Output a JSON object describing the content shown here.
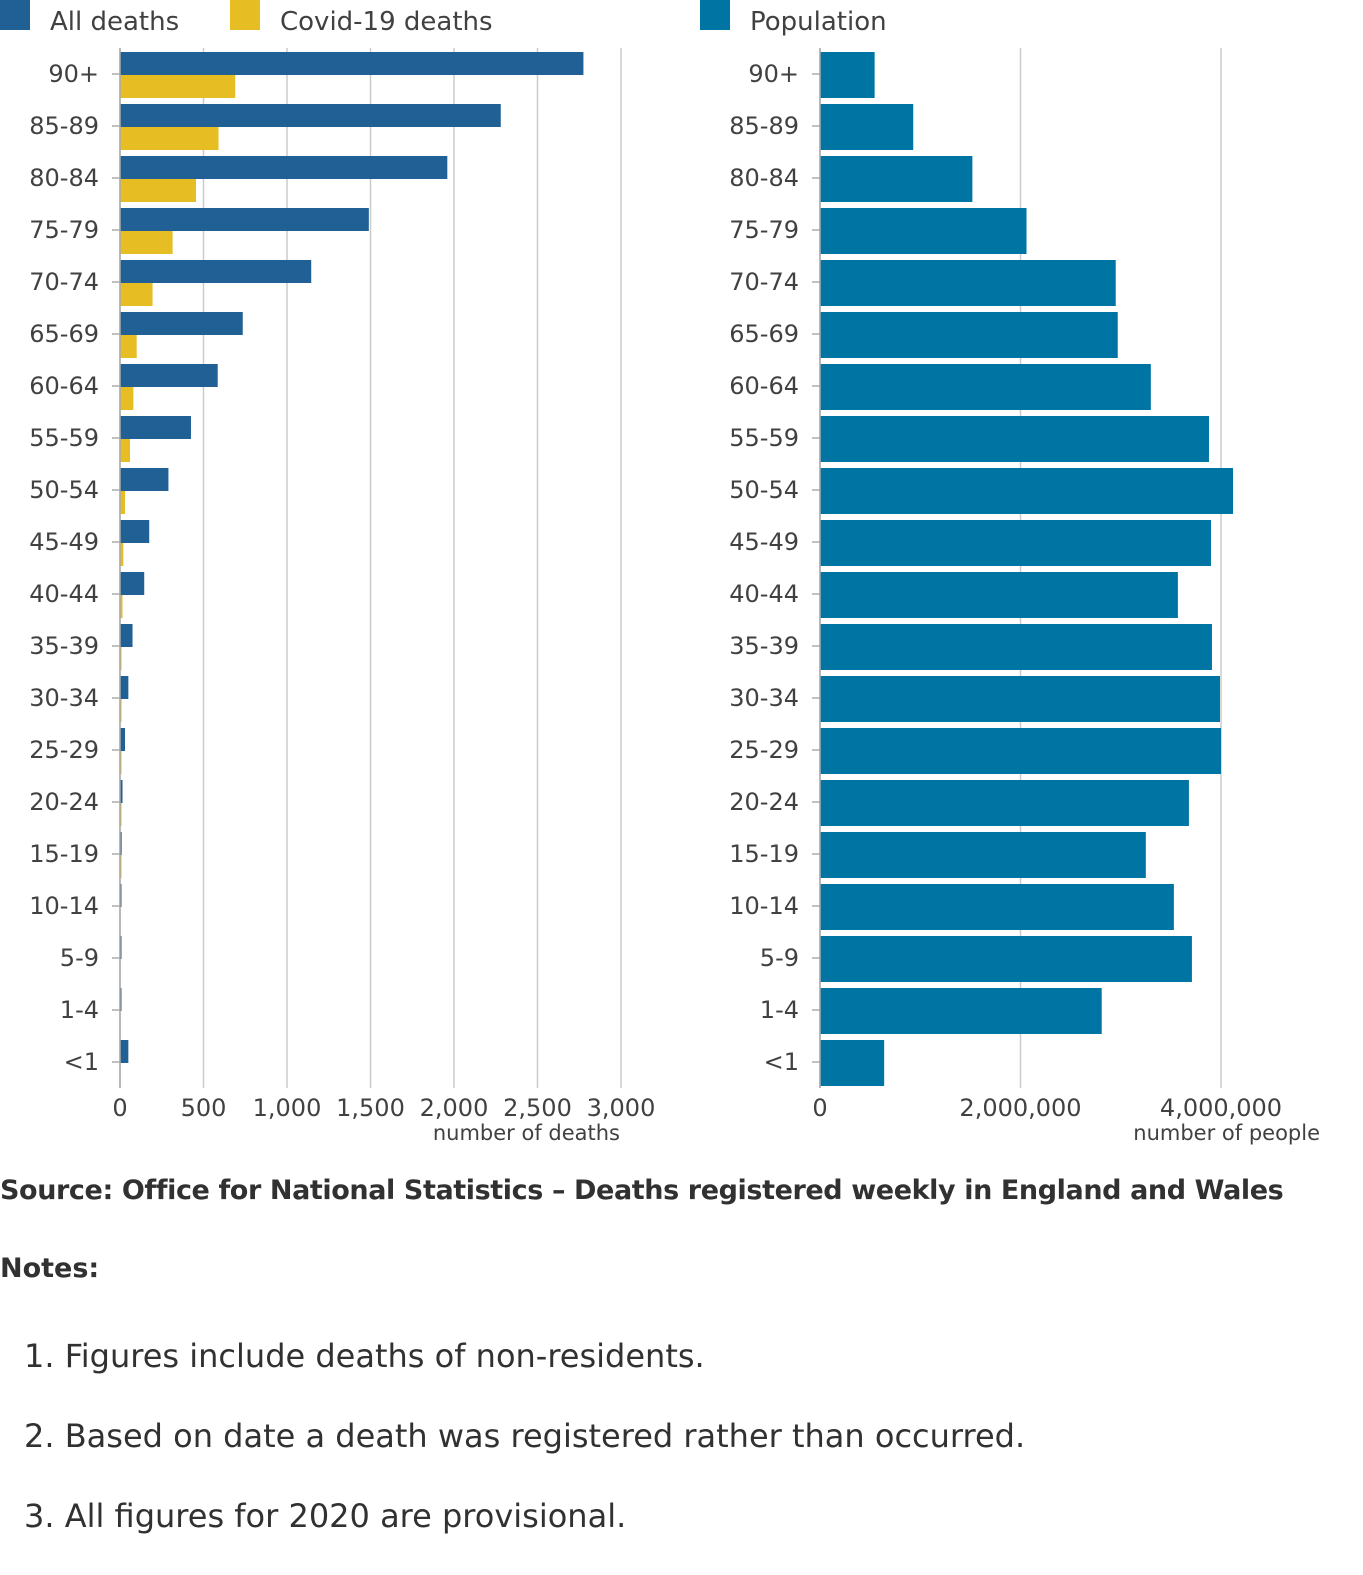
{
  "chart_data": [
    {
      "type": "bar",
      "orientation": "horizontal",
      "categories": [
        "90+",
        "85-89",
        "80-84",
        "75-79",
        "70-74",
        "65-69",
        "60-64",
        "55-59",
        "50-54",
        "45-49",
        "40-44",
        "35-39",
        "30-34",
        "25-29",
        "20-24",
        "15-19",
        "10-14",
        "5-9",
        "1-4",
        "<1"
      ],
      "series": [
        {
          "name": "All deaths",
          "color": "#206095",
          "values": [
            2775,
            2280,
            1960,
            1490,
            1145,
            735,
            585,
            425,
            290,
            175,
            145,
            75,
            50,
            30,
            15,
            10,
            5,
            5,
            5,
            50
          ]
        },
        {
          "name": "Covid-19 deaths",
          "color": "#e6bd23",
          "values": [
            690,
            590,
            455,
            315,
            195,
            100,
            80,
            60,
            30,
            20,
            15,
            5,
            5,
            3,
            2,
            1,
            0,
            0,
            0,
            0
          ]
        }
      ],
      "xticks": [
        "0",
        "500",
        "1,000",
        "1,500",
        "2,000",
        "2,500",
        "3,000"
      ],
      "xtick_values": [
        0,
        500,
        1000,
        1500,
        2000,
        2500,
        3000
      ],
      "xlabel": "number of deaths",
      "xlim": [
        0,
        3000
      ],
      "grid": "vertical",
      "legend": "top-left"
    },
    {
      "type": "bar",
      "orientation": "horizontal",
      "categories": [
        "90+",
        "85-89",
        "80-84",
        "75-79",
        "70-74",
        "65-69",
        "60-64",
        "55-59",
        "50-54",
        "45-49",
        "40-44",
        "35-39",
        "30-34",
        "25-29",
        "20-24",
        "15-19",
        "10-14",
        "5-9",
        "1-4",
        "<1"
      ],
      "series": [
        {
          "name": "Population",
          "color": "#0075a3",
          "values": [
            545000,
            930000,
            1520000,
            2060000,
            2950000,
            2970000,
            3300000,
            3880000,
            4120000,
            3900000,
            3570000,
            3910000,
            3990000,
            4000000,
            3680000,
            3250000,
            3530000,
            3710000,
            2810000,
            640000
          ]
        }
      ],
      "xticks": [
        "0",
        "2,000,000",
        "4,000,000"
      ],
      "xtick_values": [
        0,
        2000000,
        4000000
      ],
      "xlabel": "number of people",
      "xlim": [
        0,
        4000000
      ],
      "grid": "vertical",
      "legend": "top-left"
    }
  ],
  "source": "Source: Office for National Statistics – Deaths registered weekly in England and Wales",
  "notes_title": "Notes:",
  "notes": [
    "1. Figures include deaths of non-residents.",
    "2. Based on date a death was registered rather than occurred.",
    "3. All figures for 2020 are provisional."
  ]
}
